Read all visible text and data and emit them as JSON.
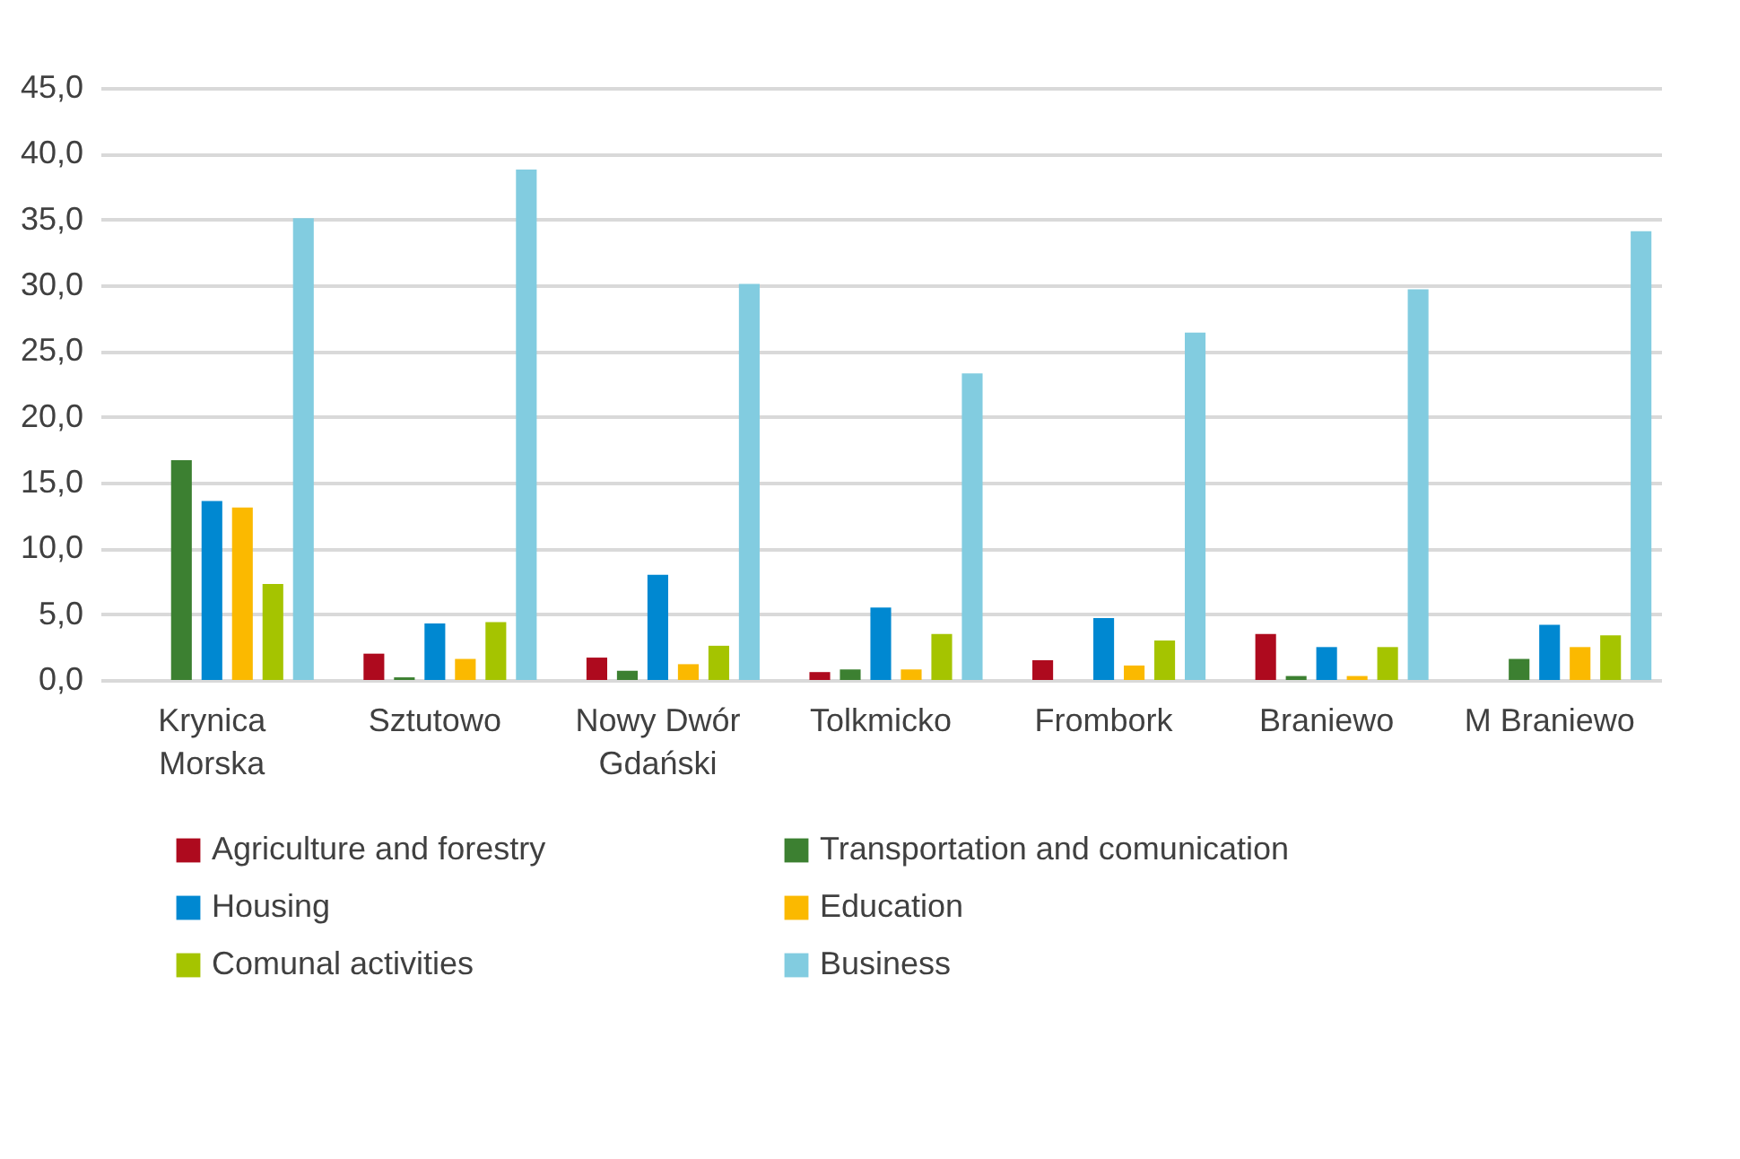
{
  "chart_data": {
    "type": "bar",
    "categories": [
      "Krynica Morska",
      "Sztutowo",
      "Nowy Dwór Gdański",
      "Tolkmicko",
      "Frombork",
      "Braniewo",
      "M Braniewo"
    ],
    "series": [
      {
        "name": "Agriculture and forestry",
        "color": "#ae0a1e",
        "values": [
          null,
          2.0,
          1.7,
          0.6,
          1.5,
          3.5,
          null
        ]
      },
      {
        "name": "Transportation and comunication",
        "color": "#3c8031",
        "values": [
          16.7,
          0.2,
          0.7,
          0.8,
          null,
          0.3,
          1.6
        ]
      },
      {
        "name": "Housing",
        "color": "#0088d1",
        "values": [
          13.6,
          4.3,
          8.0,
          5.5,
          4.7,
          2.5,
          4.2
        ]
      },
      {
        "name": "Education",
        "color": "#fbb900",
        "values": [
          13.1,
          1.6,
          1.2,
          0.8,
          1.1,
          0.3,
          2.5
        ]
      },
      {
        "name": "Comunal activities",
        "color": "#a5c400",
        "values": [
          7.3,
          4.4,
          2.6,
          3.5,
          3.0,
          2.5,
          3.4
        ]
      },
      {
        "name": "Business",
        "color": "#82cce0",
        "values": [
          35.1,
          38.8,
          30.1,
          23.3,
          26.4,
          29.7,
          34.1
        ]
      }
    ],
    "ylim": [
      0,
      45
    ],
    "yticks": [
      {
        "value": 0,
        "label": "0,0"
      },
      {
        "value": 5,
        "label": "5,0"
      },
      {
        "value": 10,
        "label": "10,0"
      },
      {
        "value": 15,
        "label": "15,0"
      },
      {
        "value": 20,
        "label": "20,0"
      },
      {
        "value": 25,
        "label": "25,0"
      },
      {
        "value": 30,
        "label": "30,0"
      },
      {
        "value": 35,
        "label": "35,0"
      },
      {
        "value": 40,
        "label": "40,0"
      },
      {
        "value": 45,
        "label": "45,0"
      }
    ],
    "grid": "y",
    "legend": "bottom"
  }
}
